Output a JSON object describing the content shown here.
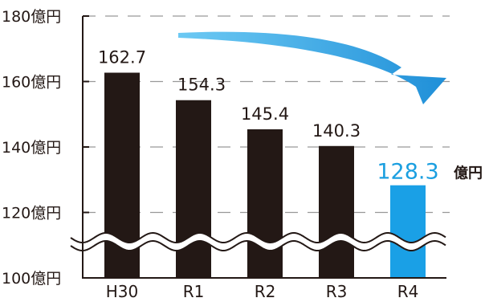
{
  "chart_data": {
    "type": "bar",
    "categories": [
      "H30",
      "R1",
      "R2",
      "R3",
      "R4"
    ],
    "values": [
      162.7,
      154.3,
      145.4,
      140.3,
      128.3
    ],
    "value_labels": [
      "162.7",
      "154.3",
      "145.4",
      "140.3",
      "128.3"
    ],
    "highlight_unit": "億円",
    "highlight_index": 4,
    "yticks": [
      "180億円",
      "160億円",
      "140億円",
      "120億円",
      "100億円"
    ],
    "ytick_values": [
      180,
      160,
      140,
      120,
      100
    ],
    "ylim": [
      100,
      180
    ],
    "axis_break": true,
    "grid": true,
    "title": "",
    "xlabel": "",
    "ylabel": "",
    "colors": {
      "bar": "#231815",
      "highlight_bar": "#1aa0e6",
      "highlight_label": "#1b9fe0",
      "arrow": "#1f9be0",
      "grid": "#999999"
    }
  }
}
